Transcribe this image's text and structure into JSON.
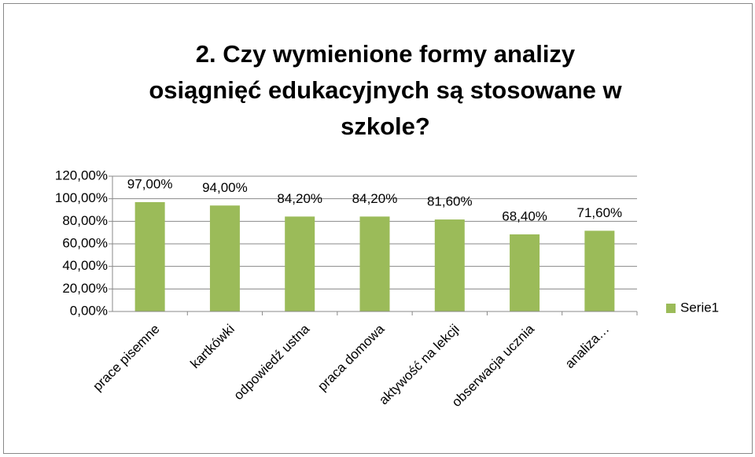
{
  "chart_data": {
    "type": "bar",
    "title": "2. Czy wymienione formy analizy\nosiągnięć edukacyjnych są stosowane w\nszkole?",
    "categories": [
      "prace pisemne",
      "kartkówki",
      "odpowiedź ustna",
      "praca domowa",
      "aktywość na lekcji",
      "obserwacja ucznia",
      "analiza…"
    ],
    "series": [
      {
        "name": "Serie1",
        "color": "#9bbb59",
        "values": [
          97,
          94,
          84.2,
          84.2,
          81.6,
          68.4,
          71.6
        ],
        "value_labels": [
          "97,00%",
          "94,00%",
          "84,20%",
          "84,20%",
          "81,60%",
          "68,40%",
          "71,60%"
        ]
      }
    ],
    "ylim": [
      0,
      120
    ],
    "yticks": [
      {
        "value": 0,
        "label": "0,00%"
      },
      {
        "value": 20,
        "label": "20,00%"
      },
      {
        "value": 40,
        "label": "40,00%"
      },
      {
        "value": 60,
        "label": "60,00%"
      },
      {
        "value": 80,
        "label": "80,00%"
      },
      {
        "value": 100,
        "label": "100,00%"
      },
      {
        "value": 120,
        "label": "120,00%"
      }
    ],
    "grid": true,
    "legend": "right"
  }
}
